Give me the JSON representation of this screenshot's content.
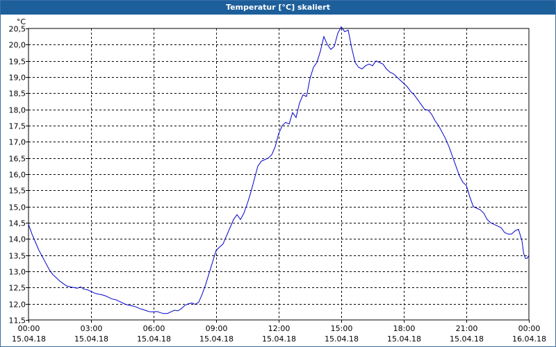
{
  "window": {
    "title": "Temperatur [°C] skaliert"
  },
  "chart_data": {
    "type": "line",
    "title": "Temperatur [°C] skaliert",
    "ylabel": "°C",
    "xlabel": "",
    "xlim": [
      "15.04.18 00:00",
      "16.04.18 00:00"
    ],
    "ylim": [
      11.5,
      20.5
    ],
    "grid": true,
    "line_color": "#0000cc",
    "y_ticks": [
      "20,5",
      "20,0",
      "19,5",
      "19,0",
      "18,5",
      "18,0",
      "17,5",
      "17,0",
      "16,5",
      "16,0",
      "15,5",
      "15,0",
      "14,5",
      "14,0",
      "13,5",
      "13,0",
      "12,5",
      "12,0",
      "11,5"
    ],
    "x_ticks": [
      {
        "time": "00:00",
        "date": "15.04.18"
      },
      {
        "time": "03:00",
        "date": "15.04.18"
      },
      {
        "time": "06:00",
        "date": "15.04.18"
      },
      {
        "time": "09:00",
        "date": "15.04.18"
      },
      {
        "time": "12:00",
        "date": "15.04.18"
      },
      {
        "time": "15:00",
        "date": "15.04.18"
      },
      {
        "time": "18:00",
        "date": "15.04.18"
      },
      {
        "time": "21:00",
        "date": "15.04.18"
      },
      {
        "time": "00:00",
        "date": "16.04.18"
      }
    ],
    "series": [
      {
        "points": [
          [
            "15.04.18 00:00",
            14.45
          ],
          [
            "15.04.18 00:10",
            14.15
          ],
          [
            "15.04.18 00:20",
            13.9
          ],
          [
            "15.04.18 00:30",
            13.65
          ],
          [
            "15.04.18 00:40",
            13.45
          ],
          [
            "15.04.18 00:50",
            13.25
          ],
          [
            "15.04.18 01:00",
            13.05
          ],
          [
            "15.04.18 01:10",
            12.9
          ],
          [
            "15.04.18 01:20",
            12.8
          ],
          [
            "15.04.18 01:30",
            12.7
          ],
          [
            "15.04.18 01:40",
            12.62
          ],
          [
            "15.04.18 01:50",
            12.55
          ],
          [
            "15.04.18 02:00",
            12.52
          ],
          [
            "15.04.18 02:10",
            12.5
          ],
          [
            "15.04.18 02:20",
            12.48
          ],
          [
            "15.04.18 02:30",
            12.52
          ],
          [
            "15.04.18 02:40",
            12.45
          ],
          [
            "15.04.18 02:50",
            12.43
          ],
          [
            "15.04.18 03:00",
            12.38
          ],
          [
            "15.04.18 03:10",
            12.33
          ],
          [
            "15.04.18 03:20",
            12.3
          ],
          [
            "15.04.18 03:30",
            12.28
          ],
          [
            "15.04.18 03:40",
            12.25
          ],
          [
            "15.04.18 03:50",
            12.2
          ],
          [
            "15.04.18 04:00",
            12.15
          ],
          [
            "15.04.18 04:10",
            12.13
          ],
          [
            "15.04.18 04:20",
            12.08
          ],
          [
            "15.04.18 04:30",
            12.03
          ],
          [
            "15.04.18 04:40",
            11.98
          ],
          [
            "15.04.18 04:50",
            11.95
          ],
          [
            "15.04.18 05:00",
            11.93
          ],
          [
            "15.04.18 05:10",
            11.9
          ],
          [
            "15.04.18 05:20",
            11.85
          ],
          [
            "15.04.18 05:30",
            11.82
          ],
          [
            "15.04.18 05:40",
            11.78
          ],
          [
            "15.04.18 05:50",
            11.75
          ],
          [
            "15.04.18 06:00",
            11.75
          ],
          [
            "15.04.18 06:10",
            11.76
          ],
          [
            "15.04.18 06:20",
            11.72
          ],
          [
            "15.04.18 06:30",
            11.7
          ],
          [
            "15.04.18 06:40",
            11.7
          ],
          [
            "15.04.18 06:50",
            11.75
          ],
          [
            "15.04.18 07:00",
            11.8
          ],
          [
            "15.04.18 07:10",
            11.78
          ],
          [
            "15.04.18 07:20",
            11.85
          ],
          [
            "15.04.18 07:30",
            11.95
          ],
          [
            "15.04.18 07:40",
            12.0
          ],
          [
            "15.04.18 07:50",
            12.02
          ],
          [
            "15.04.18 08:00",
            11.98
          ],
          [
            "15.04.18 08:10",
            12.05
          ],
          [
            "15.04.18 08:20",
            12.3
          ],
          [
            "15.04.18 08:30",
            12.6
          ],
          [
            "15.04.18 08:40",
            12.95
          ],
          [
            "15.04.18 08:50",
            13.3
          ],
          [
            "15.04.18 09:00",
            13.65
          ],
          [
            "15.04.18 09:10",
            13.75
          ],
          [
            "15.04.18 09:20",
            13.85
          ],
          [
            "15.04.18 09:30",
            14.1
          ],
          [
            "15.04.18 09:40",
            14.35
          ],
          [
            "15.04.18 09:50",
            14.6
          ],
          [
            "15.04.18 10:00",
            14.75
          ],
          [
            "15.04.18 10:10",
            14.6
          ],
          [
            "15.04.18 10:20",
            14.8
          ],
          [
            "15.04.18 10:30",
            15.1
          ],
          [
            "15.04.18 10:40",
            15.45
          ],
          [
            "15.04.18 10:50",
            15.85
          ],
          [
            "15.04.18 11:00",
            16.25
          ],
          [
            "15.04.18 11:10",
            16.4
          ],
          [
            "15.04.18 11:20",
            16.45
          ],
          [
            "15.04.18 11:30",
            16.5
          ],
          [
            "15.04.18 11:40",
            16.6
          ],
          [
            "15.04.18 11:50",
            16.85
          ],
          [
            "15.04.18 12:00",
            17.25
          ],
          [
            "15.04.18 12:10",
            17.5
          ],
          [
            "15.04.18 12:20",
            17.6
          ],
          [
            "15.04.18 12:30",
            17.55
          ],
          [
            "15.04.18 12:40",
            17.9
          ],
          [
            "15.04.18 12:50",
            17.75
          ],
          [
            "15.04.18 13:00",
            18.2
          ],
          [
            "15.04.18 13:10",
            18.45
          ],
          [
            "15.04.18 13:20",
            18.4
          ],
          [
            "15.04.18 13:30",
            18.95
          ],
          [
            "15.04.18 13:40",
            19.3
          ],
          [
            "15.04.18 13:50",
            19.45
          ],
          [
            "15.04.18 14:00",
            19.8
          ],
          [
            "15.04.18 14:10",
            20.25
          ],
          [
            "15.04.18 14:20",
            20.0
          ],
          [
            "15.04.18 14:30",
            19.85
          ],
          [
            "15.04.18 14:40",
            19.95
          ],
          [
            "15.04.18 14:50",
            20.35
          ],
          [
            "15.04.18 15:00",
            20.55
          ],
          [
            "15.04.18 15:10",
            20.4
          ],
          [
            "15.04.18 15:20",
            20.45
          ],
          [
            "15.04.18 15:30",
            19.9
          ],
          [
            "15.04.18 15:40",
            19.45
          ],
          [
            "15.04.18 15:50",
            19.3
          ],
          [
            "15.04.18 16:00",
            19.25
          ],
          [
            "15.04.18 16:10",
            19.35
          ],
          [
            "15.04.18 16:20",
            19.4
          ],
          [
            "15.04.18 16:30",
            19.35
          ],
          [
            "15.04.18 16:40",
            19.5
          ],
          [
            "15.04.18 16:50",
            19.45
          ],
          [
            "15.04.18 17:00",
            19.4
          ],
          [
            "15.04.18 17:10",
            19.25
          ],
          [
            "15.04.18 17:20",
            19.15
          ],
          [
            "15.04.18 17:30",
            19.1
          ],
          [
            "15.04.18 17:40",
            19.0
          ],
          [
            "15.04.18 17:50",
            18.9
          ],
          [
            "15.04.18 18:00",
            18.8
          ],
          [
            "15.04.18 18:10",
            18.7
          ],
          [
            "15.04.18 18:20",
            18.55
          ],
          [
            "15.04.18 18:30",
            18.45
          ],
          [
            "15.04.18 18:40",
            18.3
          ],
          [
            "15.04.18 18:50",
            18.15
          ],
          [
            "15.04.18 19:00",
            18.0
          ],
          [
            "15.04.18 19:10",
            17.98
          ],
          [
            "15.04.18 19:20",
            17.85
          ],
          [
            "15.04.18 19:30",
            17.65
          ],
          [
            "15.04.18 19:40",
            17.5
          ],
          [
            "15.04.18 19:50",
            17.3
          ],
          [
            "15.04.18 20:00",
            17.1
          ],
          [
            "15.04.18 20:10",
            16.85
          ],
          [
            "15.04.18 20:20",
            16.55
          ],
          [
            "15.04.18 20:30",
            16.25
          ],
          [
            "15.04.18 20:40",
            15.95
          ],
          [
            "15.04.18 20:50",
            15.75
          ],
          [
            "15.04.18 21:00",
            15.65
          ],
          [
            "15.04.18 21:10",
            15.3
          ],
          [
            "15.04.18 21:20",
            15.0
          ],
          [
            "15.04.18 21:30",
            14.95
          ],
          [
            "15.04.18 21:40",
            14.9
          ],
          [
            "15.04.18 21:50",
            14.8
          ],
          [
            "15.04.18 22:00",
            14.6
          ],
          [
            "15.04.18 22:10",
            14.5
          ],
          [
            "15.04.18 22:20",
            14.45
          ],
          [
            "15.04.18 22:30",
            14.4
          ],
          [
            "15.04.18 22:40",
            14.35
          ],
          [
            "15.04.18 22:50",
            14.2
          ],
          [
            "15.04.18 23:00",
            14.15
          ],
          [
            "15.04.18 23:10",
            14.15
          ],
          [
            "15.04.18 23:20",
            14.25
          ],
          [
            "15.04.18 23:30",
            14.3
          ],
          [
            "15.04.18 23:40",
            13.95
          ],
          [
            "15.04.18 23:45",
            13.55
          ],
          [
            "15.04.18 23:50",
            13.4
          ],
          [
            "15.04.18 23:55",
            13.4
          ],
          [
            "16.04.18 00:00",
            13.5
          ]
        ]
      }
    ]
  }
}
